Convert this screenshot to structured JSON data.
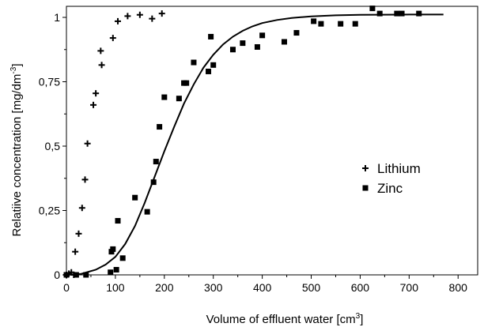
{
  "chart_data": {
    "type": "scatter",
    "xlabel": "Volume of effluent water [cm",
    "xlabel_sup": "3",
    "xlabel_end": "]",
    "ylabel": "Relatiive concentration [mg/dm",
    "ylabel_sup": "-3",
    "ylabel_end": "]",
    "xlim": [
      0,
      840
    ],
    "ylim": [
      0,
      1.07
    ],
    "xticks": [
      0,
      100,
      200,
      300,
      400,
      500,
      600,
      700,
      800
    ],
    "xtick_labels": [
      "0",
      "100",
      "200",
      "300",
      "400",
      "500",
      "600",
      "700",
      "800"
    ],
    "yticks": [
      0,
      0.25,
      0.5,
      0.75,
      1
    ],
    "ytick_labels": [
      "0",
      "0,25",
      "0,5",
      "0,75",
      "1"
    ],
    "grid": false,
    "legend_position": "center-right",
    "series": [
      {
        "name": "Lithium",
        "marker": "plus",
        "points": [
          [
            0,
            0.0
          ],
          [
            5,
            0.005
          ],
          [
            10,
            0.01
          ],
          [
            15,
            0.0
          ],
          [
            18,
            0.09
          ],
          [
            25,
            0.16
          ],
          [
            32,
            0.26
          ],
          [
            38,
            0.37
          ],
          [
            43,
            0.51
          ],
          [
            55,
            0.66
          ],
          [
            60,
            0.705
          ],
          [
            70,
            0.87
          ],
          [
            72,
            0.815
          ],
          [
            95,
            0.92
          ],
          [
            105,
            0.985
          ],
          [
            125,
            1.005
          ],
          [
            150,
            1.01
          ],
          [
            175,
            0.995
          ],
          [
            195,
            1.015
          ]
        ]
      },
      {
        "name": "Zinc",
        "marker": "square",
        "points": [
          [
            0,
            0.0
          ],
          [
            20,
            0.0
          ],
          [
            40,
            0.0
          ],
          [
            90,
            0.01
          ],
          [
            92,
            0.09
          ],
          [
            95,
            0.1
          ],
          [
            102,
            0.02
          ],
          [
            105,
            0.21
          ],
          [
            115,
            0.065
          ],
          [
            140,
            0.3
          ],
          [
            165,
            0.245
          ],
          [
            178,
            0.36
          ],
          [
            183,
            0.44
          ],
          [
            190,
            0.575
          ],
          [
            200,
            0.69
          ],
          [
            230,
            0.685
          ],
          [
            240,
            0.745
          ],
          [
            245,
            0.745
          ],
          [
            260,
            0.825
          ],
          [
            290,
            0.79
          ],
          [
            295,
            0.925
          ],
          [
            300,
            0.815
          ],
          [
            340,
            0.875
          ],
          [
            360,
            0.9
          ],
          [
            390,
            0.885
          ],
          [
            400,
            0.93
          ],
          [
            445,
            0.905
          ],
          [
            470,
            0.94
          ],
          [
            505,
            0.985
          ],
          [
            520,
            0.975
          ],
          [
            560,
            0.975
          ],
          [
            590,
            0.975
          ],
          [
            625,
            1.035
          ],
          [
            640,
            1.015
          ],
          [
            675,
            1.015
          ],
          [
            685,
            1.015
          ],
          [
            720,
            1.015
          ]
        ]
      }
    ],
    "fit_curve": {
      "series": "Zinc",
      "points": [
        [
          0,
          0.0
        ],
        [
          30,
          0.004
        ],
        [
          60,
          0.02
        ],
        [
          80,
          0.04
        ],
        [
          100,
          0.07
        ],
        [
          120,
          0.12
        ],
        [
          140,
          0.19
        ],
        [
          160,
          0.28
        ],
        [
          180,
          0.38
        ],
        [
          200,
          0.48
        ],
        [
          220,
          0.575
        ],
        [
          240,
          0.665
        ],
        [
          260,
          0.74
        ],
        [
          280,
          0.805
        ],
        [
          300,
          0.855
        ],
        [
          320,
          0.895
        ],
        [
          340,
          0.925
        ],
        [
          360,
          0.948
        ],
        [
          380,
          0.965
        ],
        [
          400,
          0.978
        ],
        [
          430,
          0.99
        ],
        [
          460,
          0.998
        ],
        [
          500,
          1.004
        ],
        [
          550,
          1.008
        ],
        [
          600,
          1.01
        ],
        [
          700,
          1.011
        ],
        [
          770,
          1.011
        ]
      ]
    }
  }
}
